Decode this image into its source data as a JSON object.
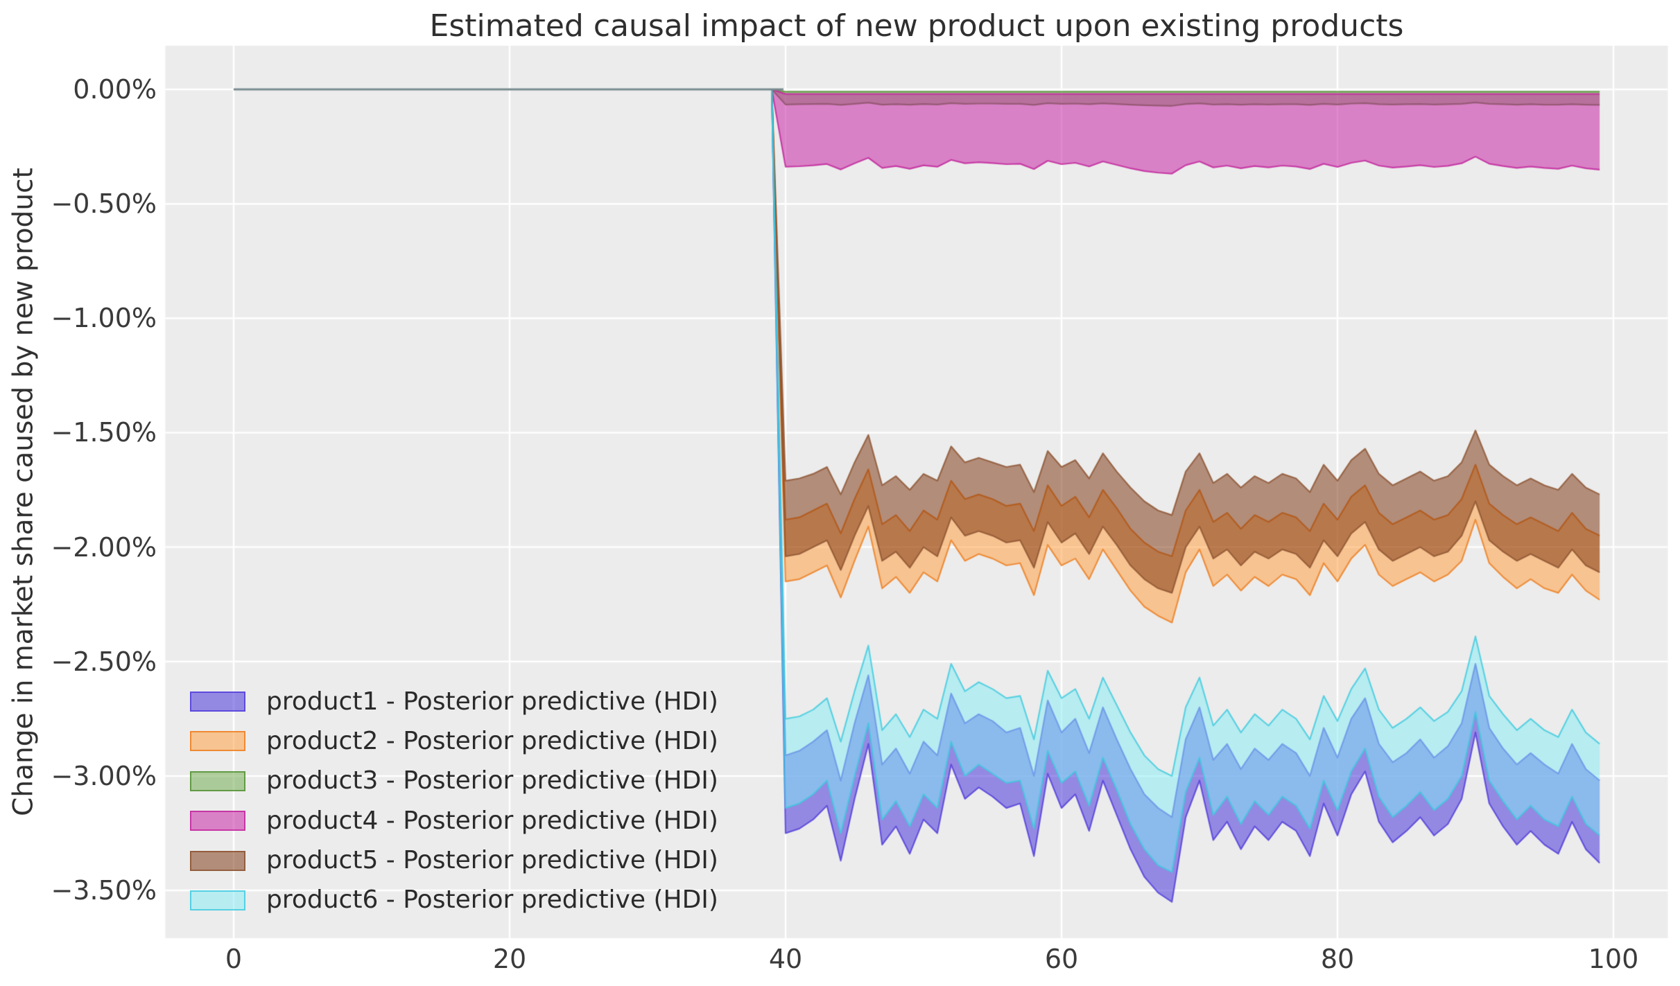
{
  "chart_data": {
    "type": "area",
    "title": "Estimated causal impact of new product upon existing products",
    "xlabel": "",
    "ylabel": "Change in market share caused by new product",
    "grid": true,
    "legend_position": "lower left",
    "xlim": [
      -4.95,
      103.95
    ],
    "ylim": [
      -3.71,
      0.19
    ],
    "x_ticks": [
      {
        "label": "0",
        "value": 0
      },
      {
        "label": "20",
        "value": 20
      },
      {
        "label": "40",
        "value": 40
      },
      {
        "label": "60",
        "value": 60
      },
      {
        "label": "80",
        "value": 80
      },
      {
        "label": "100",
        "value": 100
      }
    ],
    "y_ticks": [
      {
        "label": "0.00%",
        "value": 0
      },
      {
        "label": "−0.50%",
        "value": -0.5
      },
      {
        "label": "−1.00%",
        "value": -1.0
      },
      {
        "label": "−1.50%",
        "value": -1.5
      },
      {
        "label": "−2.00%",
        "value": -2.0
      },
      {
        "label": "−2.50%",
        "value": -2.5
      },
      {
        "label": "−3.00%",
        "value": -3.0
      },
      {
        "label": "−3.50%",
        "value": -3.5
      }
    ],
    "intervention_start_x": 40,
    "pre_period": {
      "x_range": [
        0,
        39
      ],
      "value": 0.0
    },
    "x_post_start": 40,
    "units": "percent change in market share (HDI bands, upper/lower bounds)",
    "series": [
      {
        "name": "product1",
        "legend_label": "product1 - Posterior predictive (HDI)",
        "fill": "rgba(77,57,219,0.55)",
        "edge": "rgba(77,57,219,0.8)",
        "upper": [
          -2.91,
          -2.89,
          -2.85,
          -2.8,
          -3.02,
          -2.77,
          -2.56,
          -2.95,
          -2.88,
          -2.99,
          -2.85,
          -2.91,
          -2.64,
          -2.77,
          -2.73,
          -2.76,
          -2.81,
          -2.79,
          -3.0,
          -2.67,
          -2.81,
          -2.75,
          -2.9,
          -2.7,
          -2.84,
          -2.97,
          -3.08,
          -3.14,
          -3.18,
          -2.84,
          -2.7,
          -2.93,
          -2.86,
          -2.97,
          -2.88,
          -2.93,
          -2.86,
          -2.9,
          -3.0,
          -2.79,
          -2.92,
          -2.75,
          -2.66,
          -2.86,
          -2.94,
          -2.9,
          -2.84,
          -2.92,
          -2.87,
          -2.77,
          -2.51,
          -2.79,
          -2.88,
          -2.95,
          -2.9,
          -2.95,
          -2.99,
          -2.86,
          -2.97,
          -3.02
        ],
        "lower": [
          -3.25,
          -3.23,
          -3.19,
          -3.13,
          -3.37,
          -3.1,
          -2.86,
          -3.3,
          -3.22,
          -3.34,
          -3.19,
          -3.25,
          -2.95,
          -3.1,
          -3.05,
          -3.09,
          -3.14,
          -3.12,
          -3.35,
          -2.99,
          -3.14,
          -3.08,
          -3.24,
          -3.02,
          -3.17,
          -3.32,
          -3.44,
          -3.51,
          -3.55,
          -3.18,
          -3.02,
          -3.28,
          -3.2,
          -3.32,
          -3.22,
          -3.28,
          -3.2,
          -3.24,
          -3.35,
          -3.12,
          -3.26,
          -3.08,
          -2.98,
          -3.2,
          -3.29,
          -3.24,
          -3.18,
          -3.26,
          -3.21,
          -3.1,
          -2.81,
          -3.12,
          -3.22,
          -3.3,
          -3.24,
          -3.3,
          -3.34,
          -3.2,
          -3.32,
          -3.38
        ]
      },
      {
        "name": "product2",
        "legend_label": "product2 - Posterior predictive (HDI)",
        "fill": "rgba(255,154,54,0.5)",
        "edge": "rgba(238,124,28,0.8)",
        "upper": [
          -1.88,
          -1.87,
          -1.84,
          -1.81,
          -1.94,
          -1.79,
          -1.66,
          -1.9,
          -1.86,
          -1.93,
          -1.84,
          -1.88,
          -1.71,
          -1.79,
          -1.77,
          -1.79,
          -1.82,
          -1.81,
          -1.93,
          -1.73,
          -1.82,
          -1.78,
          -1.87,
          -1.75,
          -1.83,
          -1.92,
          -1.98,
          -2.02,
          -2.04,
          -1.84,
          -1.75,
          -1.89,
          -1.85,
          -1.92,
          -1.86,
          -1.89,
          -1.85,
          -1.87,
          -1.93,
          -1.81,
          -1.88,
          -1.78,
          -1.73,
          -1.85,
          -1.9,
          -1.87,
          -1.84,
          -1.88,
          -1.86,
          -1.79,
          -1.64,
          -1.81,
          -1.86,
          -1.9,
          -1.87,
          -1.9,
          -1.93,
          -1.85,
          -1.92,
          -1.95
        ],
        "lower": [
          -2.15,
          -2.14,
          -2.11,
          -2.08,
          -2.22,
          -2.06,
          -1.91,
          -2.18,
          -2.13,
          -2.2,
          -2.11,
          -2.15,
          -1.97,
          -2.06,
          -2.03,
          -2.05,
          -2.08,
          -2.07,
          -2.21,
          -1.99,
          -2.08,
          -2.05,
          -2.14,
          -2.01,
          -2.1,
          -2.19,
          -2.26,
          -2.3,
          -2.33,
          -2.11,
          -2.01,
          -2.17,
          -2.12,
          -2.19,
          -2.13,
          -2.17,
          -2.12,
          -2.14,
          -2.21,
          -2.07,
          -2.15,
          -2.05,
          -1.99,
          -2.12,
          -2.17,
          -2.14,
          -2.11,
          -2.15,
          -2.12,
          -2.06,
          -1.88,
          -2.07,
          -2.13,
          -2.18,
          -2.14,
          -2.18,
          -2.2,
          -2.12,
          -2.19,
          -2.23
        ]
      },
      {
        "name": "product3",
        "legend_label": "product3 - Posterior predictive (HDI)",
        "fill": "rgba(105,168,69,0.5)",
        "edge": "rgba(80,143,48,0.8)",
        "upper_const": -0.01,
        "lower": [
          -0.066,
          -0.065,
          -0.064,
          -0.063,
          -0.068,
          -0.063,
          -0.058,
          -0.067,
          -0.065,
          -0.067,
          -0.064,
          -0.066,
          -0.06,
          -0.063,
          -0.062,
          -0.062,
          -0.063,
          -0.063,
          -0.068,
          -0.06,
          -0.063,
          -0.062,
          -0.065,
          -0.061,
          -0.064,
          -0.067,
          -0.069,
          -0.071,
          -0.072,
          -0.064,
          -0.061,
          -0.066,
          -0.065,
          -0.067,
          -0.065,
          -0.066,
          -0.065,
          -0.065,
          -0.068,
          -0.063,
          -0.066,
          -0.062,
          -0.06,
          -0.065,
          -0.066,
          -0.065,
          -0.064,
          -0.066,
          -0.065,
          -0.063,
          -0.057,
          -0.063,
          -0.065,
          -0.067,
          -0.065,
          -0.067,
          -0.067,
          -0.065,
          -0.067,
          -0.068
        ]
      },
      {
        "name": "product4",
        "legend_label": "product4 - Posterior predictive (HDI)",
        "fill": "rgba(198,22,160,0.5)",
        "edge": "rgba(194,40,157,0.85)",
        "upper_const": -0.02,
        "lower": [
          -0.338,
          -0.336,
          -0.332,
          -0.326,
          -0.35,
          -0.323,
          -0.299,
          -0.343,
          -0.335,
          -0.347,
          -0.332,
          -0.338,
          -0.308,
          -0.323,
          -0.318,
          -0.322,
          -0.327,
          -0.325,
          -0.348,
          -0.312,
          -0.327,
          -0.321,
          -0.337,
          -0.315,
          -0.33,
          -0.345,
          -0.357,
          -0.364,
          -0.368,
          -0.331,
          -0.315,
          -0.341,
          -0.333,
          -0.345,
          -0.335,
          -0.341,
          -0.333,
          -0.337,
          -0.348,
          -0.325,
          -0.339,
          -0.321,
          -0.311,
          -0.333,
          -0.342,
          -0.337,
          -0.331,
          -0.339,
          -0.334,
          -0.323,
          -0.294,
          -0.325,
          -0.335,
          -0.343,
          -0.337,
          -0.343,
          -0.347,
          -0.333,
          -0.345,
          -0.351
        ]
      },
      {
        "name": "product5",
        "legend_label": "product5 - Posterior predictive (HDI)",
        "fill": "rgba(120,46,8,0.5)",
        "edge": "rgba(140,82,48,0.8)",
        "upper": [
          -1.71,
          -1.7,
          -1.68,
          -1.65,
          -1.77,
          -1.63,
          -1.51,
          -1.73,
          -1.69,
          -1.75,
          -1.68,
          -1.71,
          -1.56,
          -1.63,
          -1.61,
          -1.63,
          -1.65,
          -1.64,
          -1.76,
          -1.58,
          -1.65,
          -1.62,
          -1.7,
          -1.59,
          -1.67,
          -1.74,
          -1.8,
          -1.84,
          -1.86,
          -1.67,
          -1.59,
          -1.72,
          -1.68,
          -1.74,
          -1.69,
          -1.72,
          -1.68,
          -1.7,
          -1.76,
          -1.64,
          -1.71,
          -1.62,
          -1.57,
          -1.68,
          -1.73,
          -1.7,
          -1.67,
          -1.71,
          -1.69,
          -1.63,
          -1.49,
          -1.64,
          -1.69,
          -1.73,
          -1.7,
          -1.73,
          -1.75,
          -1.68,
          -1.74,
          -1.77
        ],
        "lower": [
          -2.04,
          -2.03,
          -2.0,
          -1.97,
          -2.1,
          -1.95,
          -1.82,
          -2.06,
          -2.02,
          -2.09,
          -2.0,
          -2.04,
          -1.87,
          -1.95,
          -1.93,
          -1.95,
          -1.98,
          -1.97,
          -2.09,
          -1.89,
          -1.98,
          -1.94,
          -2.03,
          -1.91,
          -1.99,
          -2.08,
          -2.14,
          -2.18,
          -2.2,
          -2.0,
          -1.91,
          -2.05,
          -2.01,
          -2.08,
          -2.02,
          -2.05,
          -2.01,
          -2.03,
          -2.09,
          -1.97,
          -2.04,
          -1.94,
          -1.89,
          -2.01,
          -2.06,
          -2.03,
          -2.0,
          -2.04,
          -2.02,
          -1.95,
          -1.8,
          -1.97,
          -2.02,
          -2.06,
          -2.03,
          -2.06,
          -2.09,
          -2.01,
          -2.08,
          -2.11
        ]
      },
      {
        "name": "product6",
        "legend_label": "product6 - Posterior predictive (HDI)",
        "fill": "rgba(130,236,246,0.5)",
        "edge": "rgba(60,203,223,0.8)",
        "upper": [
          -2.75,
          -2.74,
          -2.71,
          -2.66,
          -2.85,
          -2.63,
          -2.43,
          -2.8,
          -2.73,
          -2.83,
          -2.71,
          -2.75,
          -2.51,
          -2.63,
          -2.59,
          -2.62,
          -2.66,
          -2.65,
          -2.84,
          -2.54,
          -2.66,
          -2.62,
          -2.75,
          -2.57,
          -2.69,
          -2.81,
          -2.91,
          -2.97,
          -3.0,
          -2.7,
          -2.57,
          -2.78,
          -2.71,
          -2.81,
          -2.73,
          -2.78,
          -2.71,
          -2.75,
          -2.84,
          -2.65,
          -2.76,
          -2.62,
          -2.53,
          -2.71,
          -2.79,
          -2.75,
          -2.7,
          -2.76,
          -2.72,
          -2.63,
          -2.39,
          -2.65,
          -2.73,
          -2.8,
          -2.75,
          -2.8,
          -2.83,
          -2.71,
          -2.81,
          -2.86
        ],
        "lower": [
          -3.14,
          -3.12,
          -3.08,
          -3.02,
          -3.25,
          -3.0,
          -2.77,
          -3.19,
          -3.11,
          -3.22,
          -3.08,
          -3.14,
          -2.85,
          -3.0,
          -2.95,
          -2.99,
          -3.03,
          -3.02,
          -3.23,
          -2.89,
          -3.03,
          -2.98,
          -3.13,
          -2.92,
          -3.06,
          -3.21,
          -3.32,
          -3.39,
          -3.42,
          -3.07,
          -2.92,
          -3.17,
          -3.09,
          -3.21,
          -3.11,
          -3.17,
          -3.09,
          -3.13,
          -3.23,
          -3.02,
          -3.15,
          -2.98,
          -2.88,
          -3.09,
          -3.18,
          -3.13,
          -3.07,
          -3.15,
          -3.1,
          -3.0,
          -2.72,
          -3.02,
          -3.11,
          -3.19,
          -3.13,
          -3.19,
          -3.22,
          -3.09,
          -3.21,
          -3.26
        ]
      }
    ]
  },
  "colors": {
    "figure_bg": "#ffffff",
    "plot_bg": "#ececec",
    "grid": "#ffffff",
    "title_text": "#2f2f2f",
    "tick_text": "#3a3a3a",
    "pre_period_line": "#77898d"
  }
}
